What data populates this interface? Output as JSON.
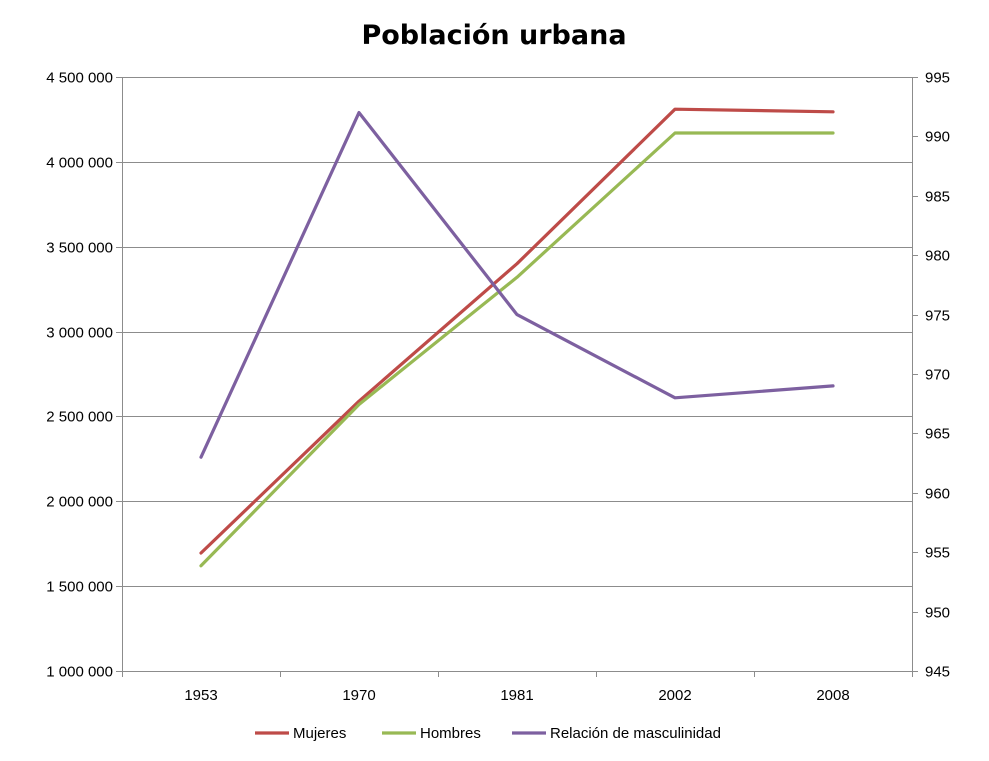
{
  "chart_data": {
    "type": "line",
    "title": "Población urbana",
    "categories": [
      "1953",
      "1970",
      "1981",
      "2002",
      "2008"
    ],
    "y_left": {
      "ylim": [
        1000000,
        4500000
      ],
      "ticks": [
        1000000,
        1500000,
        2000000,
        2500000,
        3000000,
        3500000,
        4000000,
        4500000
      ],
      "tick_labels": [
        "1 000 000",
        "1 500 000",
        "2 000 000",
        "2 500 000",
        "3 000 000",
        "3 500 000",
        "4 000 000",
        "4 500 000"
      ]
    },
    "y_right": {
      "ylim": [
        945,
        995
      ],
      "ticks": [
        945,
        950,
        955,
        960,
        965,
        970,
        975,
        980,
        985,
        990,
        995
      ],
      "tick_labels": [
        "945",
        "950",
        "955",
        "960",
        "965",
        "970",
        "975",
        "980",
        "985",
        "990",
        "995"
      ]
    },
    "grid": true,
    "legend_position": "bottom",
    "series": [
      {
        "name": "Mujeres",
        "axis": "left",
        "color": "#be4b48",
        "values": [
          1695000,
          2590000,
          3400000,
          4310000,
          4295000
        ]
      },
      {
        "name": "Hombres",
        "axis": "left",
        "color": "#98b954",
        "values": [
          1620000,
          2570000,
          3320000,
          4170000,
          4170000
        ]
      },
      {
        "name": "Relación de masculinidad",
        "axis": "right",
        "color": "#7d60a0",
        "values": [
          963,
          992,
          975,
          968,
          969
        ]
      }
    ]
  }
}
